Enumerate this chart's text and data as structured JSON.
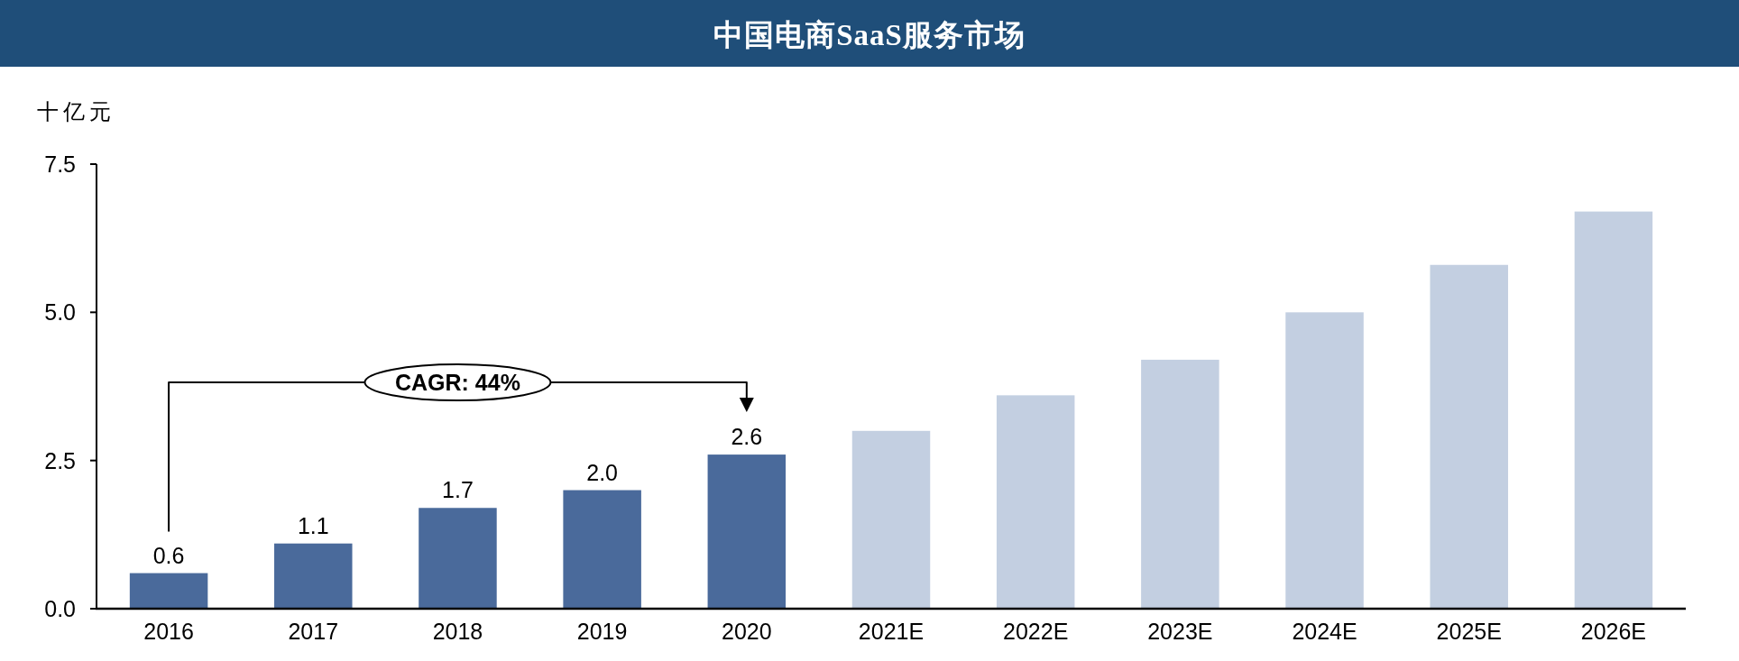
{
  "chart_data": {
    "type": "bar",
    "title": "中国电商SaaS服务市场",
    "ylabel": "十亿元",
    "categories": [
      "2016",
      "2017",
      "2018",
      "2019",
      "2020",
      "2021E",
      "2022E",
      "2023E",
      "2024E",
      "2025E",
      "2026E"
    ],
    "values": [
      0.6,
      1.1,
      1.7,
      2.0,
      2.6,
      3.0,
      3.6,
      4.2,
      5.0,
      5.8,
      6.7
    ],
    "colors": [
      "#4a6a9b",
      "#4a6a9b",
      "#4a6a9b",
      "#4a6a9b",
      "#4a6a9b",
      "#c3cfe1",
      "#c3cfe1",
      "#c3cfe1",
      "#c3cfe1",
      "#c3cfe1",
      "#c3cfe1"
    ],
    "value_labels": [
      "0.6",
      "1.1",
      "1.7",
      "2.0",
      "2.6",
      null,
      null,
      null,
      null,
      null,
      null
    ],
    "ylim": [
      0,
      7.5
    ],
    "yticks": [
      {
        "value": 0,
        "label": "0.0"
      },
      2.5,
      {
        "value": 5,
        "label": "5.0"
      },
      7.5
    ],
    "annotations": [
      "CAGR: 44%"
    ]
  }
}
